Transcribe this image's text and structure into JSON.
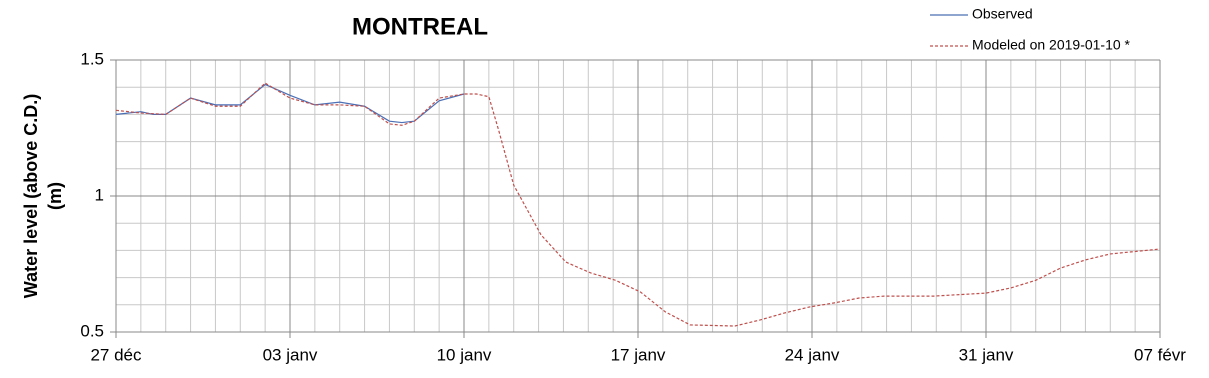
{
  "chart_data": {
    "type": "line",
    "title": "MONTREAL",
    "y_label": [
      "Water level (above C.D.)",
      "(m)"
    ],
    "xlim": [
      0,
      42
    ],
    "xticks": [
      {
        "value": 0,
        "label": "27 déc"
      },
      {
        "value": 7,
        "label": "03 janv"
      },
      {
        "value": 14,
        "label": "10 janv"
      },
      {
        "value": 21,
        "label": "17 janv"
      },
      {
        "value": 28,
        "label": "24 janv"
      },
      {
        "value": 35,
        "label": "31 janv"
      },
      {
        "value": 42,
        "label": "07 févr"
      }
    ],
    "x_minor_step": 1,
    "ylim": [
      0.5,
      1.5
    ],
    "yticks": [
      0.5,
      1,
      1.5
    ],
    "y_minor_step": 0.1,
    "grid": true,
    "legend": "top-right",
    "series": [
      {
        "name": "Observed",
        "color": "#4a6fb5",
        "dash": false,
        "x": [
          0,
          1,
          1.5,
          2,
          3,
          4,
          5,
          6,
          7,
          8,
          9,
          10,
          11,
          11.5,
          12,
          13,
          14
        ],
        "values": [
          1.3,
          1.31,
          1.3,
          1.3,
          1.36,
          1.335,
          1.335,
          1.41,
          1.37,
          1.335,
          1.345,
          1.33,
          1.275,
          1.27,
          1.275,
          1.35,
          1.375
        ]
      },
      {
        "name": "Modeled on 2019-01-10 *",
        "color": "#c0504d",
        "dash": true,
        "x": [
          0,
          1,
          2,
          3,
          4,
          5,
          6,
          7,
          8,
          9,
          10,
          11,
          11.5,
          12,
          13,
          14,
          14.5,
          15,
          15.4,
          16,
          17.1,
          18.1,
          19.1,
          20.1,
          21.1,
          22.1,
          23.1,
          24.9,
          25.9,
          26.9,
          27.9,
          28.9,
          29.9,
          30.9,
          32.9,
          35,
          36,
          37,
          38,
          39,
          40,
          42
        ],
        "values": [
          1.315,
          1.305,
          1.3,
          1.36,
          1.33,
          1.33,
          1.415,
          1.36,
          1.335,
          1.335,
          1.33,
          1.265,
          1.26,
          1.275,
          1.36,
          1.375,
          1.375,
          1.365,
          1.24,
          1.04,
          0.857,
          0.757,
          0.717,
          0.69,
          0.647,
          0.574,
          0.526,
          0.522,
          0.544,
          0.57,
          0.592,
          0.607,
          0.625,
          0.632,
          0.632,
          0.643,
          0.662,
          0.69,
          0.735,
          0.765,
          0.787,
          0.805
        ]
      }
    ]
  }
}
